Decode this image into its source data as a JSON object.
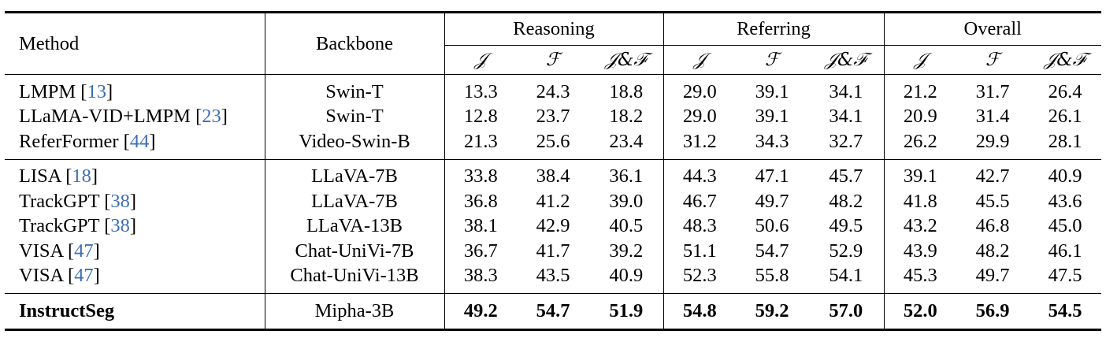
{
  "header": {
    "method": "Method",
    "backbone": "Backbone",
    "groups": [
      "Reasoning",
      "Referring",
      "Overall"
    ],
    "metrics": [
      "𝒥",
      "ℱ",
      "𝒥&ℱ"
    ]
  },
  "rows": [
    {
      "method": "LMPM",
      "cite": "13",
      "backbone": "Swin-T",
      "values": [
        "13.3",
        "24.3",
        "18.8",
        "29.0",
        "39.1",
        "34.1",
        "21.2",
        "31.7",
        "26.4"
      ]
    },
    {
      "method": "LLaMA-VID+LMPM",
      "cite": "23",
      "backbone": "Swin-T",
      "values": [
        "12.8",
        "23.7",
        "18.2",
        "29.0",
        "39.1",
        "34.1",
        "20.9",
        "31.4",
        "26.1"
      ]
    },
    {
      "method": "ReferFormer",
      "cite": "44",
      "backbone": "Video-Swin-B",
      "values": [
        "21.3",
        "25.6",
        "23.4",
        "31.2",
        "34.3",
        "32.7",
        "26.2",
        "29.9",
        "28.1"
      ]
    },
    {
      "method": "LISA",
      "cite": "18",
      "backbone": "LLaVA-7B",
      "values": [
        "33.8",
        "38.4",
        "36.1",
        "44.3",
        "47.1",
        "45.7",
        "39.1",
        "42.7",
        "40.9"
      ]
    },
    {
      "method": "TrackGPT",
      "cite": "38",
      "backbone": "LLaVA-7B",
      "values": [
        "36.8",
        "41.2",
        "39.0",
        "46.7",
        "49.7",
        "48.2",
        "41.8",
        "45.5",
        "43.6"
      ]
    },
    {
      "method": "TrackGPT",
      "cite": "38",
      "backbone": "LLaVA-13B",
      "values": [
        "38.1",
        "42.9",
        "40.5",
        "48.3",
        "50.6",
        "49.5",
        "43.2",
        "46.8",
        "45.0"
      ]
    },
    {
      "method": "VISA",
      "cite": "47",
      "backbone": "Chat-UniVi-7B",
      "values": [
        "36.7",
        "41.7",
        "39.2",
        "51.1",
        "54.7",
        "52.9",
        "43.9",
        "48.2",
        "46.1"
      ]
    },
    {
      "method": "VISA",
      "cite": "47",
      "backbone": "Chat-UniVi-13B",
      "values": [
        "38.3",
        "43.5",
        "40.9",
        "52.3",
        "55.8",
        "54.1",
        "45.3",
        "49.7",
        "47.5"
      ]
    },
    {
      "method": "InstructSeg",
      "cite": "",
      "backbone": "Mipha-3B",
      "values": [
        "49.2",
        "54.7",
        "51.9",
        "54.8",
        "59.2",
        "57.0",
        "52.0",
        "56.9",
        "54.5"
      ]
    }
  ],
  "colors": {
    "citation": "#3b6fb6",
    "rule": "#000000"
  }
}
